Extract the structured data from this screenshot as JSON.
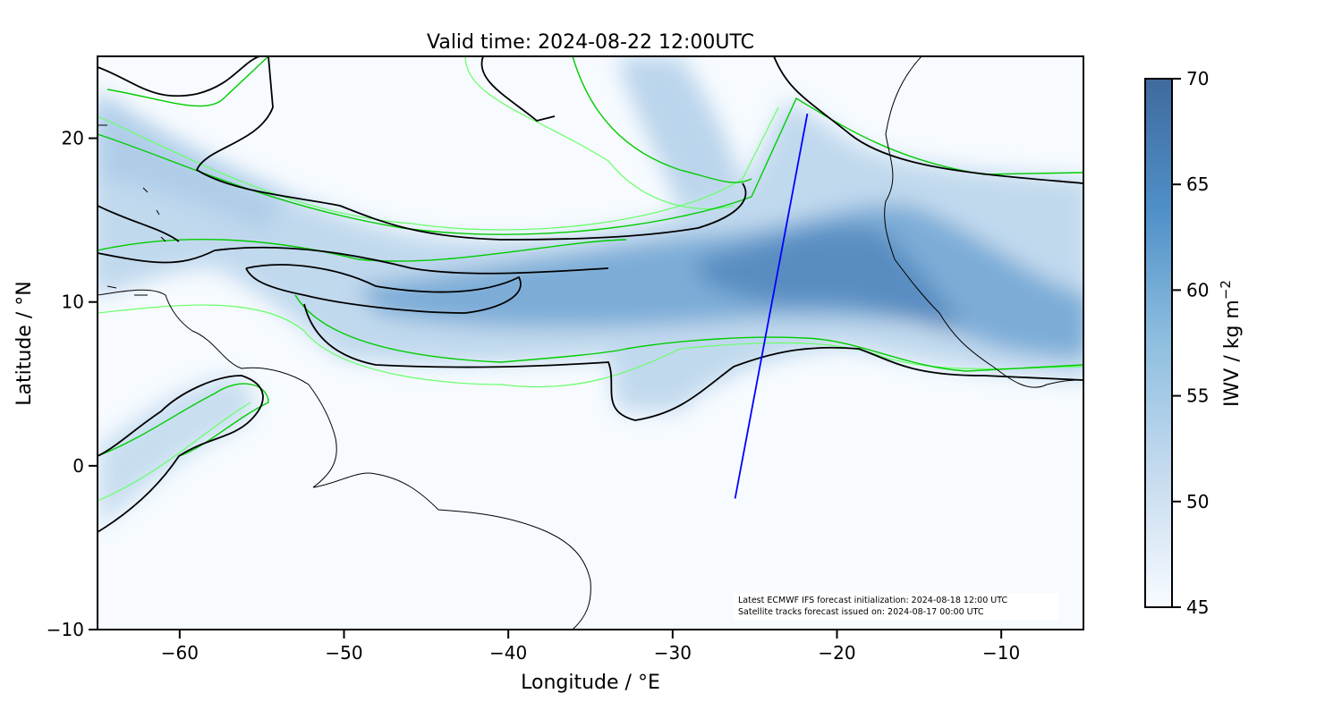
{
  "chart_data": {
    "type": "heatmap",
    "title": "Valid time: 2024-08-22 12:00UTC",
    "xlabel": "Longitude / °E",
    "ylabel": "Latitude / °N",
    "xlim": [
      -65,
      -5
    ],
    "ylim": [
      -10,
      25
    ],
    "xticks": [
      -60,
      -50,
      -40,
      -30,
      -20,
      -10
    ],
    "xtick_labels": [
      "−60",
      "−50",
      "−40",
      "−30",
      "−20",
      "−10"
    ],
    "yticks": [
      -10,
      0,
      10,
      20
    ],
    "ytick_labels": [
      "−10",
      "0",
      "10",
      "20"
    ],
    "colorbar": {
      "label": "IWV / kg m",
      "label_superscript": "−2",
      "range": [
        45,
        70
      ],
      "ticks": [
        45,
        50,
        55,
        60,
        65,
        70
      ],
      "tick_labels": [
        "45",
        "50",
        "55",
        "60",
        "65",
        "70"
      ],
      "colors": [
        "#f7fbff",
        "#c6dbef",
        "#6baed6",
        "#4292c6",
        "#3a6ea5"
      ]
    },
    "track": {
      "lon": [
        -26.2,
        -21.8
      ],
      "lat": [
        -2.0,
        21.5
      ],
      "color": "#0000ff"
    },
    "contour_colors": [
      "#000000",
      "#00cc00",
      "#66ff66",
      "#ccffcc"
    ],
    "annotation": [
      "Latest ECMWF IFS forecast initialization: 2024-08-18 12:00 UTC",
      "Satellite tracks forecast issued on: 2024-08-17 00:00 UTC"
    ]
  }
}
